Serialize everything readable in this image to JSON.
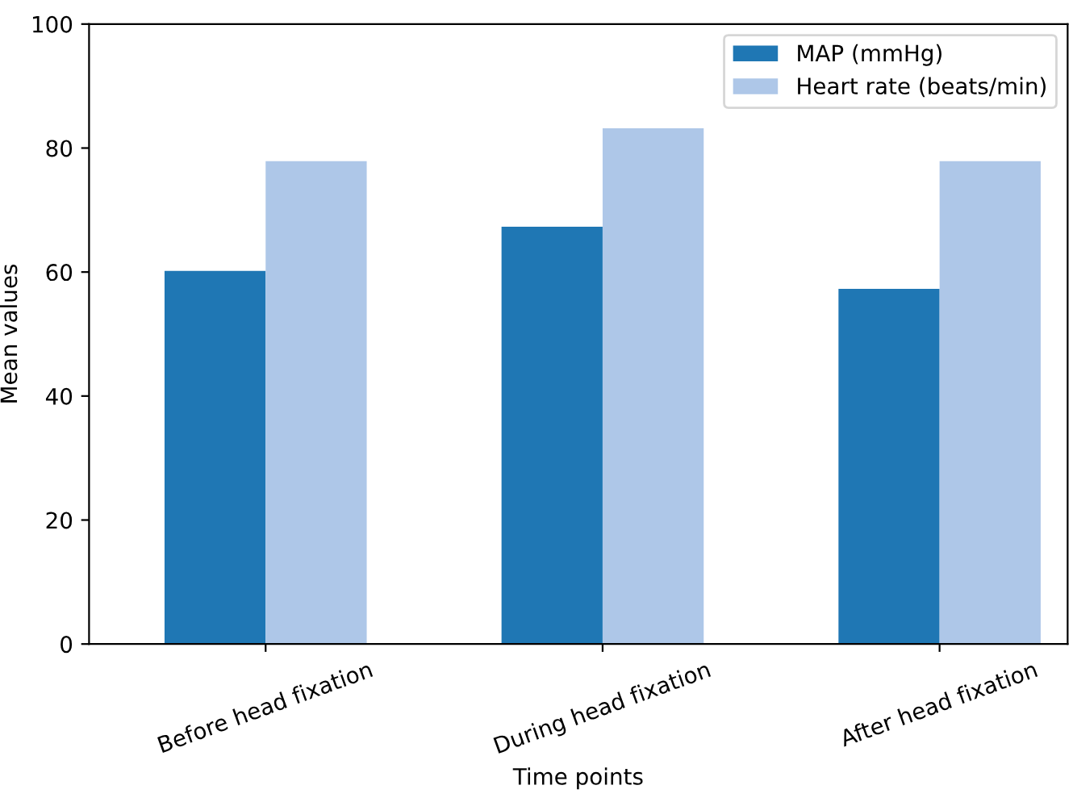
{
  "chart_data": {
    "type": "bar",
    "xlabel": "Time points",
    "ylabel": "Mean values",
    "categories": [
      "Before head fixation",
      "During head fixation",
      "After head fixation"
    ],
    "series": [
      {
        "name": "MAP (mmHg)",
        "color": "#1f77b4",
        "values": [
          60.2,
          67.3,
          57.3
        ]
      },
      {
        "name": "Heart rate (beats/min)",
        "color": "#aec7e8",
        "values": [
          77.9,
          83.2,
          77.9
        ]
      }
    ],
    "ylim": [
      0,
      100
    ],
    "yticks": [
      0,
      20,
      40,
      60,
      80,
      100
    ],
    "grid": false,
    "legend": "top right"
  }
}
